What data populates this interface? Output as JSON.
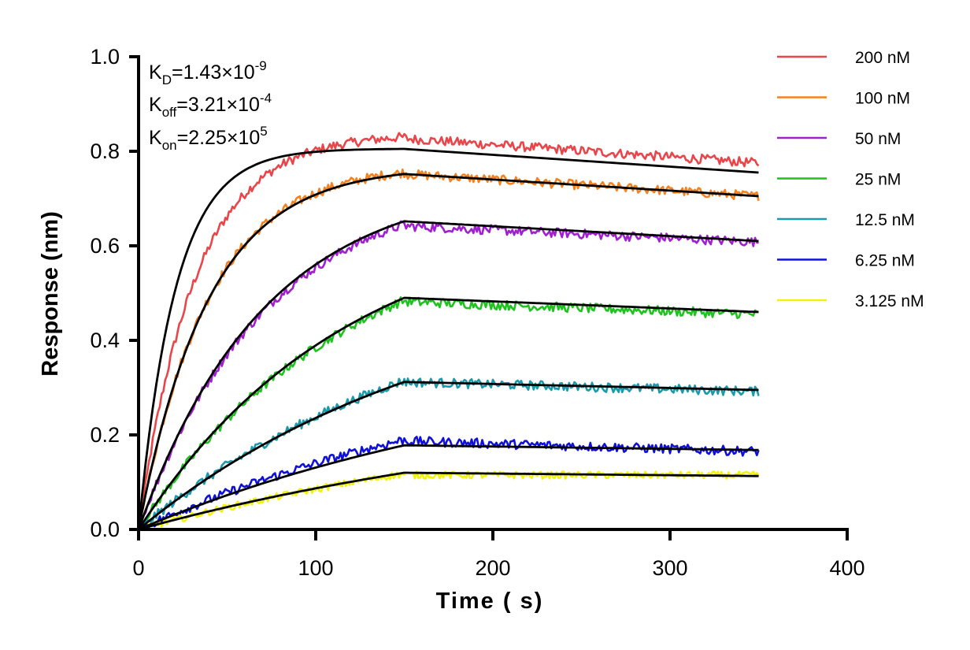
{
  "chart_data": {
    "type": "line",
    "title": "",
    "xlabel": "Time ( s)",
    "ylabel": "Response (nm)",
    "xlim": [
      0,
      400
    ],
    "ylim": [
      0,
      1.0
    ],
    "xticks": [
      0,
      100,
      200,
      300,
      400
    ],
    "yticks": [
      0.0,
      0.2,
      0.4,
      0.6,
      0.8,
      1.0
    ],
    "xtick_labels": [
      "0",
      "100",
      "200",
      "300",
      "400"
    ],
    "ytick_labels": [
      "0.0",
      "0.2",
      "0.4",
      "0.6",
      "0.8",
      "1.0"
    ],
    "grid": false,
    "legend_position": "top-right",
    "association_end": 150,
    "dissociation_end": 350,
    "kinetics": {
      "KD": {
        "sym": "K",
        "sub": "D",
        "mant": "=1.43×10",
        "exp": "-9"
      },
      "Koff": {
        "sym": "K",
        "sub": "off",
        "mant": "=3.21×10",
        "exp": "-4"
      },
      "Kon": {
        "sym": "K",
        "sub": "on",
        "mant": "=2.25×10",
        "exp": "5"
      }
    },
    "series": [
      {
        "name": "200 nM",
        "color": "#e8464a",
        "rmax_data": 0.83,
        "end_data": 0.775,
        "rmax_fit": 0.805,
        "end_fit": 0.755,
        "k_fit": 0.0479,
        "k_data": 0.0314
      },
      {
        "name": "100 nM",
        "color": "#f5821f",
        "rmax_data": 0.755,
        "end_data": 0.705,
        "rmax_fit": 0.752,
        "end_fit": 0.705,
        "k_fit": 0.0254,
        "k_data": 0.0254
      },
      {
        "name": "50 nM",
        "color": "#a020d0",
        "rmax_data": 0.645,
        "end_data": 0.608,
        "rmax_fit": 0.652,
        "end_fit": 0.61,
        "k_fit": 0.0141,
        "k_data": 0.0141
      },
      {
        "name": "25 nM",
        "color": "#1fc21f",
        "rmax_data": 0.485,
        "end_data": 0.455,
        "rmax_fit": 0.49,
        "end_fit": 0.46,
        "k_fit": 0.0085,
        "k_data": 0.0085
      },
      {
        "name": "12.5 nM",
        "color": "#1a9aaa",
        "rmax_data": 0.315,
        "end_data": 0.292,
        "rmax_fit": 0.312,
        "end_fit": 0.295,
        "k_fit": 0.0057,
        "k_data": 0.0057
      },
      {
        "name": "6.25 nM",
        "color": "#1010dd",
        "rmax_data": 0.19,
        "end_data": 0.165,
        "rmax_fit": 0.178,
        "end_fit": 0.168,
        "k_fit": 0.0043,
        "k_data": 0.0043
      },
      {
        "name": "3.125 nM",
        "color": "#f2f20a",
        "rmax_data": 0.118,
        "end_data": 0.115,
        "rmax_fit": 0.12,
        "end_fit": 0.113,
        "k_fit": 0.0036,
        "k_data": 0.0036
      }
    ]
  }
}
